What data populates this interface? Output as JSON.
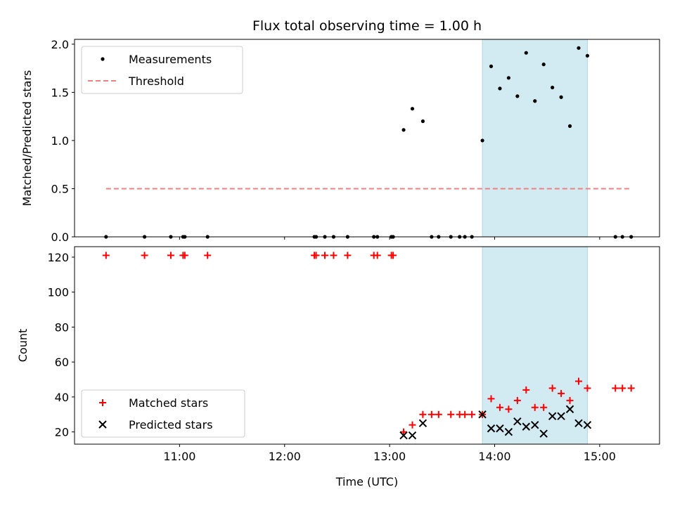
{
  "chart_data": [
    {
      "type": "scatter",
      "title": "Flux total observing time = 1.00 h",
      "ylabel": "Matched/Predicted stars",
      "xlim_hours": [
        10.0,
        15.57
      ],
      "ylim": [
        0,
        2.05
      ],
      "yticks": [
        0.0,
        0.5,
        1.0,
        1.5,
        2.0
      ],
      "ytick_labels": [
        "0.0",
        "0.5",
        "1.0",
        "1.5",
        "2.0"
      ],
      "highlight_span": [
        "13:53",
        "14:53"
      ],
      "highlight_color": "#add8e6",
      "legend_position": "upper-left",
      "series": [
        {
          "name": "Measurements",
          "color": "#000000",
          "marker": "dot",
          "points": [
            [
              "10:18",
              0
            ],
            [
              "10:40",
              0
            ],
            [
              "10:55",
              0
            ],
            [
              "11:02",
              0
            ],
            [
              "11:03",
              0
            ],
            [
              "11:16",
              0
            ],
            [
              "12:17",
              0
            ],
            [
              "12:18",
              0
            ],
            [
              "12:23",
              0
            ],
            [
              "12:28",
              0
            ],
            [
              "12:36",
              0
            ],
            [
              "12:51",
              0
            ],
            [
              "12:53",
              0
            ],
            [
              "13:01",
              0
            ],
            [
              "13:02",
              0
            ],
            [
              "13:08",
              1.11
            ],
            [
              "13:13",
              1.33
            ],
            [
              "13:19",
              1.2
            ],
            [
              "13:24",
              0
            ],
            [
              "13:28",
              0
            ],
            [
              "13:35",
              0
            ],
            [
              "13:40",
              0
            ],
            [
              "13:43",
              0
            ],
            [
              "13:47",
              0
            ],
            [
              "13:53",
              1.0
            ],
            [
              "13:58",
              1.77
            ],
            [
              "14:03",
              1.54
            ],
            [
              "14:08",
              1.65
            ],
            [
              "14:13",
              1.46
            ],
            [
              "14:18",
              1.91
            ],
            [
              "14:23",
              1.41
            ],
            [
              "14:28",
              1.79
            ],
            [
              "14:33",
              1.55
            ],
            [
              "14:38",
              1.45
            ],
            [
              "14:43",
              1.15
            ],
            [
              "14:48",
              1.96
            ],
            [
              "14:53",
              1.88
            ],
            [
              "15:09",
              0
            ],
            [
              "15:13",
              0
            ],
            [
              "15:18",
              0
            ]
          ]
        },
        {
          "name": "Threshold",
          "color": "#f08080",
          "style": "dashed",
          "line": [
            [
              "10:18",
              0.5
            ],
            [
              "15:18",
              0.5
            ]
          ]
        }
      ]
    },
    {
      "type": "scatter",
      "xlabel": "Time (UTC)",
      "ylabel": "Count",
      "xlim_hours": [
        10.0,
        15.57
      ],
      "ylim": [
        13,
        126
      ],
      "xticks": [
        "11:00",
        "12:00",
        "13:00",
        "14:00",
        "15:00"
      ],
      "yticks": [
        20,
        40,
        60,
        80,
        100,
        120
      ],
      "ytick_labels": [
        "20",
        "40",
        "60",
        "80",
        "100",
        "120"
      ],
      "highlight_span": [
        "13:53",
        "14:53"
      ],
      "highlight_color": "#add8e6",
      "legend_position": "lower-left",
      "series": [
        {
          "name": "Matched stars",
          "color": "#ff0000",
          "marker": "plus",
          "points": [
            [
              "10:18",
              121
            ],
            [
              "10:40",
              121
            ],
            [
              "10:55",
              121
            ],
            [
              "11:02",
              121
            ],
            [
              "11:03",
              121
            ],
            [
              "11:16",
              121
            ],
            [
              "12:17",
              121
            ],
            [
              "12:18",
              121
            ],
            [
              "12:23",
              121
            ],
            [
              "12:28",
              121
            ],
            [
              "12:36",
              121
            ],
            [
              "12:51",
              121
            ],
            [
              "12:53",
              121
            ],
            [
              "13:01",
              121
            ],
            [
              "13:02",
              121
            ],
            [
              "13:08",
              20
            ],
            [
              "13:13",
              24
            ],
            [
              "13:19",
              30
            ],
            [
              "13:24",
              30
            ],
            [
              "13:28",
              30
            ],
            [
              "13:35",
              30
            ],
            [
              "13:40",
              30
            ],
            [
              "13:43",
              30
            ],
            [
              "13:47",
              30
            ],
            [
              "13:53",
              30
            ],
            [
              "13:58",
              39
            ],
            [
              "14:03",
              34
            ],
            [
              "14:08",
              33
            ],
            [
              "14:13",
              38
            ],
            [
              "14:18",
              44
            ],
            [
              "14:23",
              34
            ],
            [
              "14:28",
              34
            ],
            [
              "14:33",
              45
            ],
            [
              "14:38",
              42
            ],
            [
              "14:43",
              38
            ],
            [
              "14:48",
              49
            ],
            [
              "14:53",
              45
            ],
            [
              "15:09",
              45
            ],
            [
              "15:13",
              45
            ],
            [
              "15:18",
              45
            ]
          ]
        },
        {
          "name": "Predicted stars",
          "color": "#000000",
          "marker": "x",
          "points": [
            [
              "13:08",
              18
            ],
            [
              "13:13",
              18
            ],
            [
              "13:19",
              25
            ],
            [
              "13:53",
              30
            ],
            [
              "13:58",
              22
            ],
            [
              "14:03",
              22
            ],
            [
              "14:08",
              20
            ],
            [
              "14:13",
              26
            ],
            [
              "14:18",
              23
            ],
            [
              "14:23",
              24
            ],
            [
              "14:28",
              19
            ],
            [
              "14:33",
              29
            ],
            [
              "14:38",
              29
            ],
            [
              "14:43",
              33
            ],
            [
              "14:48",
              25
            ],
            [
              "14:53",
              24
            ]
          ]
        }
      ]
    }
  ]
}
